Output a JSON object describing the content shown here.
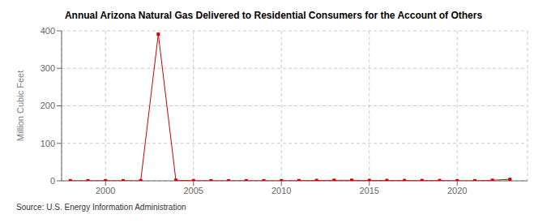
{
  "chart_data": {
    "type": "line",
    "title": "Annual Arizona Natural Gas Delivered to Residential Consumers for the Account of Others",
    "y_label": "Million Cubic Feet",
    "annotations": [
      "Source: U.S. Energy Information Administration"
    ],
    "x": [
      1998,
      1999,
      2000,
      2001,
      2002,
      2003,
      2004,
      2005,
      2006,
      2007,
      2008,
      2009,
      2010,
      2011,
      2012,
      2013,
      2014,
      2015,
      2016,
      2017,
      2018,
      2019,
      2020,
      2021,
      2022,
      2023
    ],
    "values": [
      0.3,
      0.3,
      0.3,
      0.3,
      0.3,
      391,
      1.5,
      0.5,
      0.3,
      0.3,
      0.3,
      0.3,
      0.3,
      0.5,
      1.0,
      1.5,
      1.5,
      1.0,
      1.0,
      0.8,
      0.8,
      0.8,
      0.3,
      0.3,
      1.5,
      4.0
    ],
    "color": "#cc0000",
    "marker": "square",
    "line_style": "solid",
    "xlim": [
      1997.5,
      2024
    ],
    "xticks": [
      2000,
      2005,
      2010,
      2015,
      2020
    ],
    "ylim": [
      0,
      400
    ],
    "yticks": [
      0,
      100,
      200,
      300,
      400
    ],
    "grid": true
  }
}
